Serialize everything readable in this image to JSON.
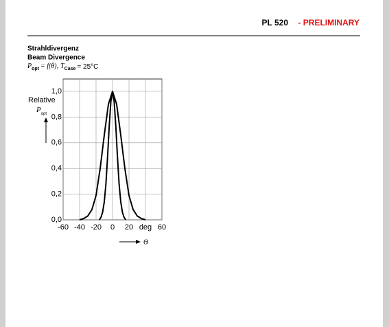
{
  "header": {
    "part": "PL 520",
    "status": "- PRELIMINARY"
  },
  "section": {
    "title_de": "Strahldivergenz",
    "title_en": "Beam Divergence",
    "formula": {
      "p": "P",
      "p_sub": "opt",
      "middle": "= f(θ),",
      "t": "T",
      "t_sub": "Case",
      "value": "= 25°C"
    }
  },
  "chart_data": {
    "type": "line",
    "y_label": "Relative",
    "y_label_symbol": "P",
    "y_label_sub": "opt",
    "x_label": "Θ",
    "xlim": [
      -60,
      60
    ],
    "ylim": [
      0,
      1
    ],
    "xticks": [
      -60,
      -40,
      -20,
      0,
      20,
      {
        "value": 40,
        "label": "deg"
      },
      60
    ],
    "yticks": [
      {
        "value": 0,
        "label": "0,0"
      },
      {
        "value": 0.2,
        "label": "0,2"
      },
      {
        "value": 0.4,
        "label": "0,4"
      },
      {
        "value": 0.6,
        "label": "0,6"
      },
      {
        "value": 0.8,
        "label": "0,8"
      },
      {
        "value": 1,
        "label": "1,0"
      }
    ],
    "grid": true,
    "series": [
      {
        "color": "#000000",
        "x": [
          -40,
          -35,
          -30,
          -25,
          -20,
          -15,
          -10,
          -5,
          0,
          5,
          10,
          15,
          20,
          25,
          30,
          35,
          40
        ],
        "values": [
          0,
          0.01,
          0.03,
          0.08,
          0.19,
          0.4,
          0.66,
          0.9,
          1,
          0.9,
          0.66,
          0.4,
          0.19,
          0.08,
          0.03,
          0.01,
          0
        ]
      },
      {
        "color": "#000000",
        "x": [
          -16,
          -14,
          -12,
          -10,
          -8,
          -6,
          -4,
          -2,
          0,
          2,
          4,
          6,
          8,
          10,
          12,
          14,
          16
        ],
        "values": [
          0,
          0.02,
          0.06,
          0.14,
          0.28,
          0.49,
          0.73,
          0.92,
          1,
          0.92,
          0.73,
          0.49,
          0.28,
          0.14,
          0.06,
          0.02,
          0
        ]
      }
    ]
  }
}
